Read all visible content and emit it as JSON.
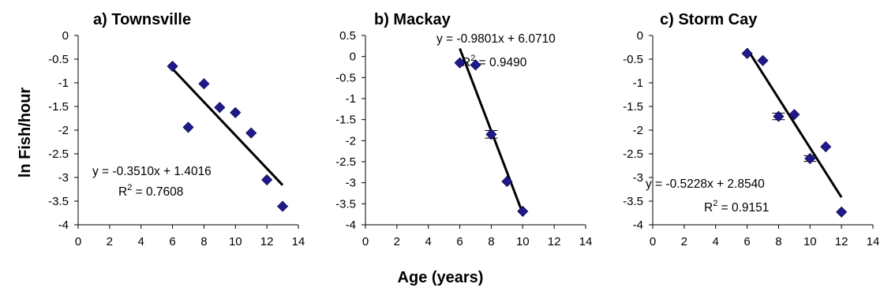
{
  "chart_data": [
    {
      "type": "scatter",
      "title": "a) Townsville",
      "xlim": [
        0,
        14
      ],
      "ylim": [
        -4,
        0
      ],
      "x_ticks": [
        "0",
        "2",
        "4",
        "6",
        "8",
        "10",
        "12",
        "14"
      ],
      "y_ticks": [
        "0",
        "-0.5",
        "-1",
        "-1.5",
        "-2",
        "-2.5",
        "-3",
        "-3.5",
        "-4"
      ],
      "points": [
        {
          "x": 6,
          "y": -0.65
        },
        {
          "x": 7,
          "y": -1.94
        },
        {
          "x": 8,
          "y": -1.02
        },
        {
          "x": 9,
          "y": -1.52
        },
        {
          "x": 10,
          "y": -1.63
        },
        {
          "x": 11,
          "y": -2.06
        },
        {
          "x": 12,
          "y": -3.05
        },
        {
          "x": 13,
          "y": -3.61
        }
      ],
      "trendline": {
        "slope": -0.351,
        "intercept": 1.4016,
        "x_range": [
          6,
          13
        ]
      },
      "equation": "y = -0.3510x + 1.4016",
      "r2_label": "R",
      "r2_sup": "2",
      "r2_value": " = 0.7608",
      "marker_color": "#1f1a8c",
      "grid": false
    },
    {
      "type": "scatter",
      "title": "b) Mackay",
      "xlim": [
        0,
        14
      ],
      "ylim": [
        -4,
        0.5
      ],
      "x_ticks": [
        "0",
        "2",
        "4",
        "6",
        "8",
        "10",
        "12",
        "14"
      ],
      "y_ticks": [
        "0.5",
        "0",
        "-0.5",
        "-1",
        "-1.5",
        "-2",
        "-2.5",
        "-3",
        "-3.5",
        "-4"
      ],
      "points": [
        {
          "x": 6,
          "y": -0.15
        },
        {
          "x": 7,
          "y": -0.2
        },
        {
          "x": 8,
          "y": -1.85,
          "err": 0.09
        },
        {
          "x": 9,
          "y": -2.97
        },
        {
          "x": 10,
          "y": -3.68
        }
      ],
      "trendline": {
        "slope": -0.9801,
        "intercept": 6.071,
        "x_range": [
          6,
          10.05
        ]
      },
      "equation": "y = -0.9801x + 6.0710",
      "r2_label": "R",
      "r2_sup": "2",
      "r2_value": " = 0.9490",
      "marker_color": "#1f1a8c",
      "grid": false
    },
    {
      "type": "scatter",
      "title": "c) Storm Cay",
      "xlim": [
        0,
        14
      ],
      "ylim": [
        -4,
        0
      ],
      "x_ticks": [
        "0",
        "2",
        "4",
        "6",
        "8",
        "10",
        "12",
        "14"
      ],
      "y_ticks": [
        "0",
        "-0.5",
        "-1",
        "-1.5",
        "-2",
        "-2.5",
        "-3",
        "-3.5",
        "-4"
      ],
      "points": [
        {
          "x": 6,
          "y": -0.38
        },
        {
          "x": 7,
          "y": -0.53
        },
        {
          "x": 8,
          "y": -1.71,
          "err": 0.07
        },
        {
          "x": 9,
          "y": -1.67
        },
        {
          "x": 10,
          "y": -2.6,
          "err": 0.06
        },
        {
          "x": 11,
          "y": -2.35
        },
        {
          "x": 12,
          "y": -3.73
        }
      ],
      "trendline": {
        "slope": -0.5228,
        "intercept": 2.854,
        "x_range": [
          6,
          12
        ]
      },
      "equation": "y = -0.5228x + 2.8540",
      "r2_label": "R",
      "r2_sup": "2",
      "r2_value": " = 0.9151",
      "marker_color": "#1f1a8c",
      "grid": false
    }
  ],
  "axes": {
    "ylabel": "ln Fish/hour",
    "xlabel": "Age (years)"
  }
}
